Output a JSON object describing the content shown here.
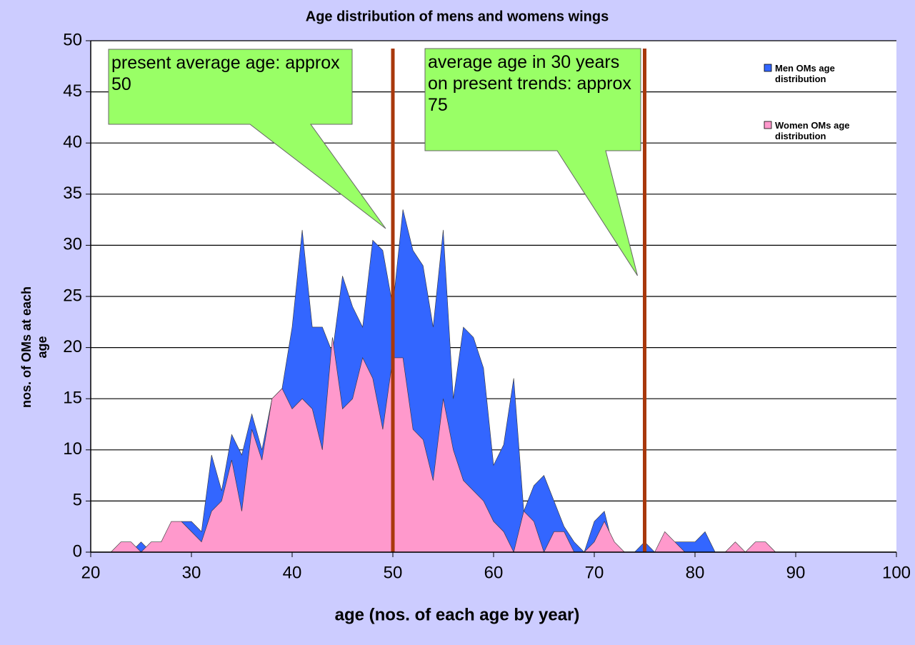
{
  "chart_data": {
    "type": "area",
    "title": "Age distribution of mens and womens wings",
    "x_label": "age (nos. of each age by year)",
    "y_label": "nos. of OMs at each age",
    "x": [
      22,
      23,
      24,
      25,
      26,
      27,
      28,
      29,
      30,
      31,
      32,
      33,
      34,
      35,
      36,
      37,
      38,
      39,
      40,
      41,
      42,
      43,
      44,
      45,
      46,
      47,
      48,
      49,
      50,
      51,
      52,
      53,
      54,
      55,
      56,
      57,
      58,
      59,
      60,
      61,
      62,
      63,
      64,
      65,
      66,
      67,
      68,
      69,
      70,
      71,
      72,
      73,
      74,
      75,
      76,
      77,
      78,
      79,
      80,
      81,
      82,
      83,
      84,
      85,
      86,
      87,
      88
    ],
    "series": [
      {
        "name": "Men OMs age distribution",
        "color": "#3366ff",
        "values": [
          0,
          0,
          0,
          1,
          0,
          0,
          0,
          3,
          3,
          2,
          9.5,
          6,
          11.5,
          9.5,
          13.5,
          10,
          15,
          16,
          22,
          31.5,
          22,
          22,
          19.5,
          27,
          24,
          22,
          30.5,
          29.5,
          24,
          33.5,
          29.5,
          28,
          22,
          31.5,
          15,
          22,
          21,
          18,
          8.5,
          10.5,
          17,
          4,
          6.5,
          7.5,
          5,
          2.5,
          1,
          0,
          3,
          4,
          0,
          0,
          0,
          1,
          0,
          0,
          1,
          1,
          1,
          2,
          0,
          0,
          0,
          0,
          0,
          0,
          0
        ]
      },
      {
        "name": "Women OMs age distribution",
        "color": "#ff99cc",
        "values": [
          0,
          1,
          1,
          0,
          1,
          1,
          3,
          3,
          2,
          1,
          4,
          5,
          9,
          4,
          12,
          9,
          15,
          16,
          14,
          15,
          14,
          10,
          21,
          14,
          15,
          19,
          17,
          12,
          19,
          19,
          12,
          11,
          7,
          15,
          10,
          7,
          6,
          5,
          3,
          2,
          0,
          4,
          3,
          0,
          2,
          2,
          0,
          0,
          1,
          3,
          1,
          0,
          0,
          0,
          0,
          2,
          1,
          0,
          0,
          0,
          0,
          0,
          1,
          0,
          1,
          1,
          0
        ]
      }
    ],
    "xlim": [
      20,
      100
    ],
    "xticks": [
      20,
      30,
      40,
      50,
      60,
      70,
      80,
      90,
      100
    ],
    "ylim": [
      0,
      50
    ],
    "yticks": [
      0,
      5,
      10,
      15,
      20,
      25,
      30,
      35,
      40,
      45,
      50
    ],
    "grid": true,
    "legend": "top-right",
    "vlines": [
      50,
      75
    ],
    "vline_color": "#a8380c",
    "annotations": [
      {
        "text": "present average age: approx 50",
        "x": 50
      },
      {
        "text": "average age in 30 years on present trends: approx 75",
        "x": 75
      }
    ]
  }
}
